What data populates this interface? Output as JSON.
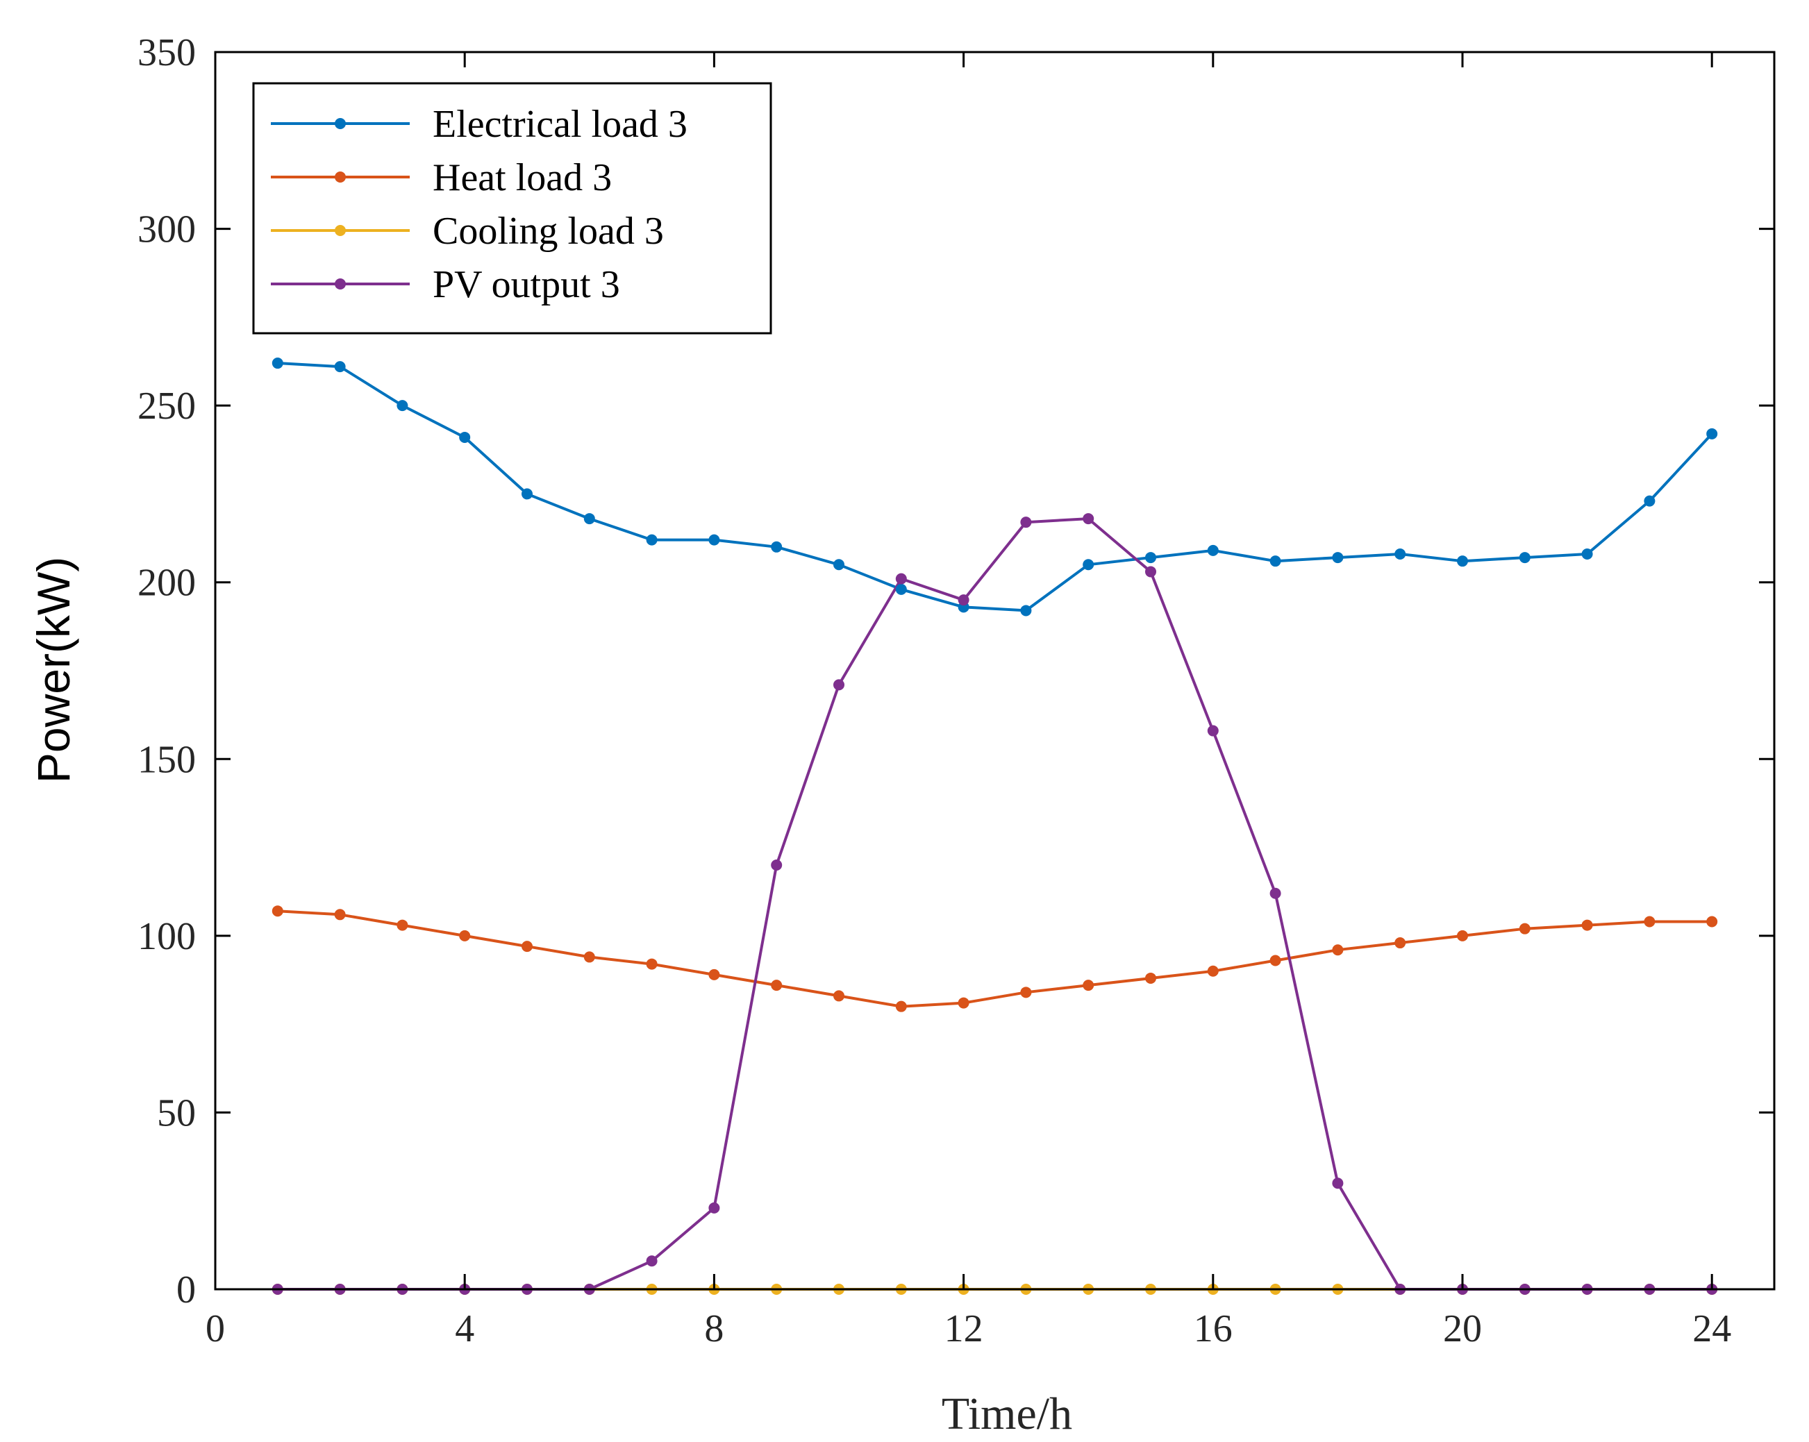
{
  "chart_data": {
    "type": "line",
    "title": "",
    "xlabel": "Time/h",
    "ylabel": "Power(kW)",
    "xlim": [
      0,
      25
    ],
    "ylim": [
      0,
      350
    ],
    "xticks": [
      0,
      4,
      8,
      12,
      16,
      20,
      24
    ],
    "yticks": [
      0,
      50,
      100,
      150,
      200,
      250,
      300,
      350
    ],
    "grid": false,
    "legend_position": "top-left",
    "x": [
      1,
      2,
      3,
      4,
      5,
      6,
      7,
      8,
      9,
      10,
      11,
      12,
      13,
      14,
      15,
      16,
      17,
      18,
      19,
      20,
      21,
      22,
      23,
      24
    ],
    "series": [
      {
        "name": "Electrical load 3",
        "color": "#0072BD",
        "values": [
          262,
          261,
          250,
          241,
          225,
          218,
          212,
          212,
          210,
          205,
          198,
          193,
          192,
          205,
          207,
          209,
          206,
          207,
          208,
          206,
          207,
          208,
          223,
          242
        ]
      },
      {
        "name": "Heat load 3",
        "color": "#D95319",
        "values": [
          107,
          106,
          103,
          100,
          97,
          94,
          92,
          89,
          86,
          83,
          80,
          81,
          84,
          86,
          88,
          90,
          93,
          96,
          98,
          100,
          102,
          103,
          104,
          104
        ]
      },
      {
        "name": "Cooling load 3",
        "color": "#EDB120",
        "values": [
          0,
          0,
          0,
          0,
          0,
          0,
          0,
          0,
          0,
          0,
          0,
          0,
          0,
          0,
          0,
          0,
          0,
          0,
          0,
          0,
          0,
          0,
          0,
          0
        ]
      },
      {
        "name": "PV output 3",
        "color": "#7E2F8E",
        "values": [
          0,
          0,
          0,
          0,
          0,
          0,
          8,
          23,
          120,
          171,
          201,
          195,
          217,
          218,
          203,
          158,
          112,
          30,
          0,
          0,
          0,
          0,
          0,
          0
        ]
      }
    ]
  }
}
